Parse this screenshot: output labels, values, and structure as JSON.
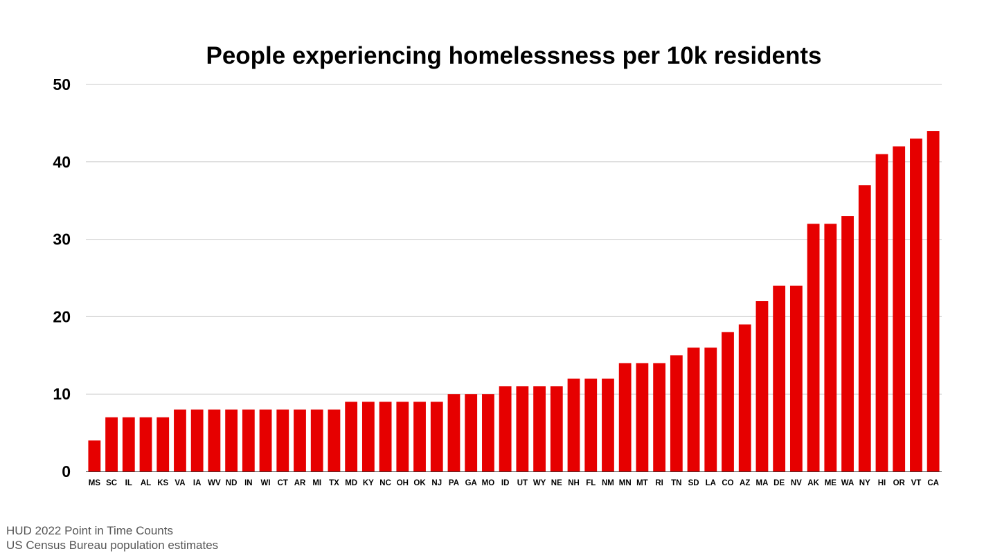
{
  "chart_data": {
    "type": "bar",
    "title": "People experiencing homelessness per 10k residents",
    "xlabel": "",
    "ylabel": "",
    "ylim": [
      0,
      50
    ],
    "yticks": [
      0,
      10,
      20,
      30,
      40,
      50
    ],
    "grid": true,
    "categories": [
      "MS",
      "SC",
      "IL",
      "AL",
      "KS",
      "VA",
      "IA",
      "WV",
      "ND",
      "IN",
      "WI",
      "CT",
      "AR",
      "MI",
      "TX",
      "MD",
      "KY",
      "NC",
      "OH",
      "OK",
      "NJ",
      "PA",
      "GA",
      "MO",
      "ID",
      "UT",
      "WY",
      "NE",
      "NH",
      "FL",
      "NM",
      "MN",
      "MT",
      "RI",
      "TN",
      "SD",
      "LA",
      "CO",
      "AZ",
      "MA",
      "DE",
      "NV",
      "AK",
      "ME",
      "WA",
      "NY",
      "HI",
      "OR",
      "VT",
      "CA"
    ],
    "values": [
      4,
      7,
      7,
      7,
      7,
      8,
      8,
      8,
      8,
      8,
      8,
      8,
      8,
      8,
      8,
      9,
      9,
      9,
      9,
      9,
      9,
      10,
      10,
      10,
      11,
      11,
      11,
      11,
      12,
      12,
      12,
      14,
      14,
      14,
      15,
      16,
      16,
      18,
      19,
      22,
      24,
      24,
      32,
      32,
      33,
      37,
      41,
      42,
      43,
      44
    ],
    "bar_color": "#e60000"
  },
  "sources": {
    "line1": "HUD 2022 Point in Time Counts",
    "line2": "US Census Bureau population estimates"
  }
}
